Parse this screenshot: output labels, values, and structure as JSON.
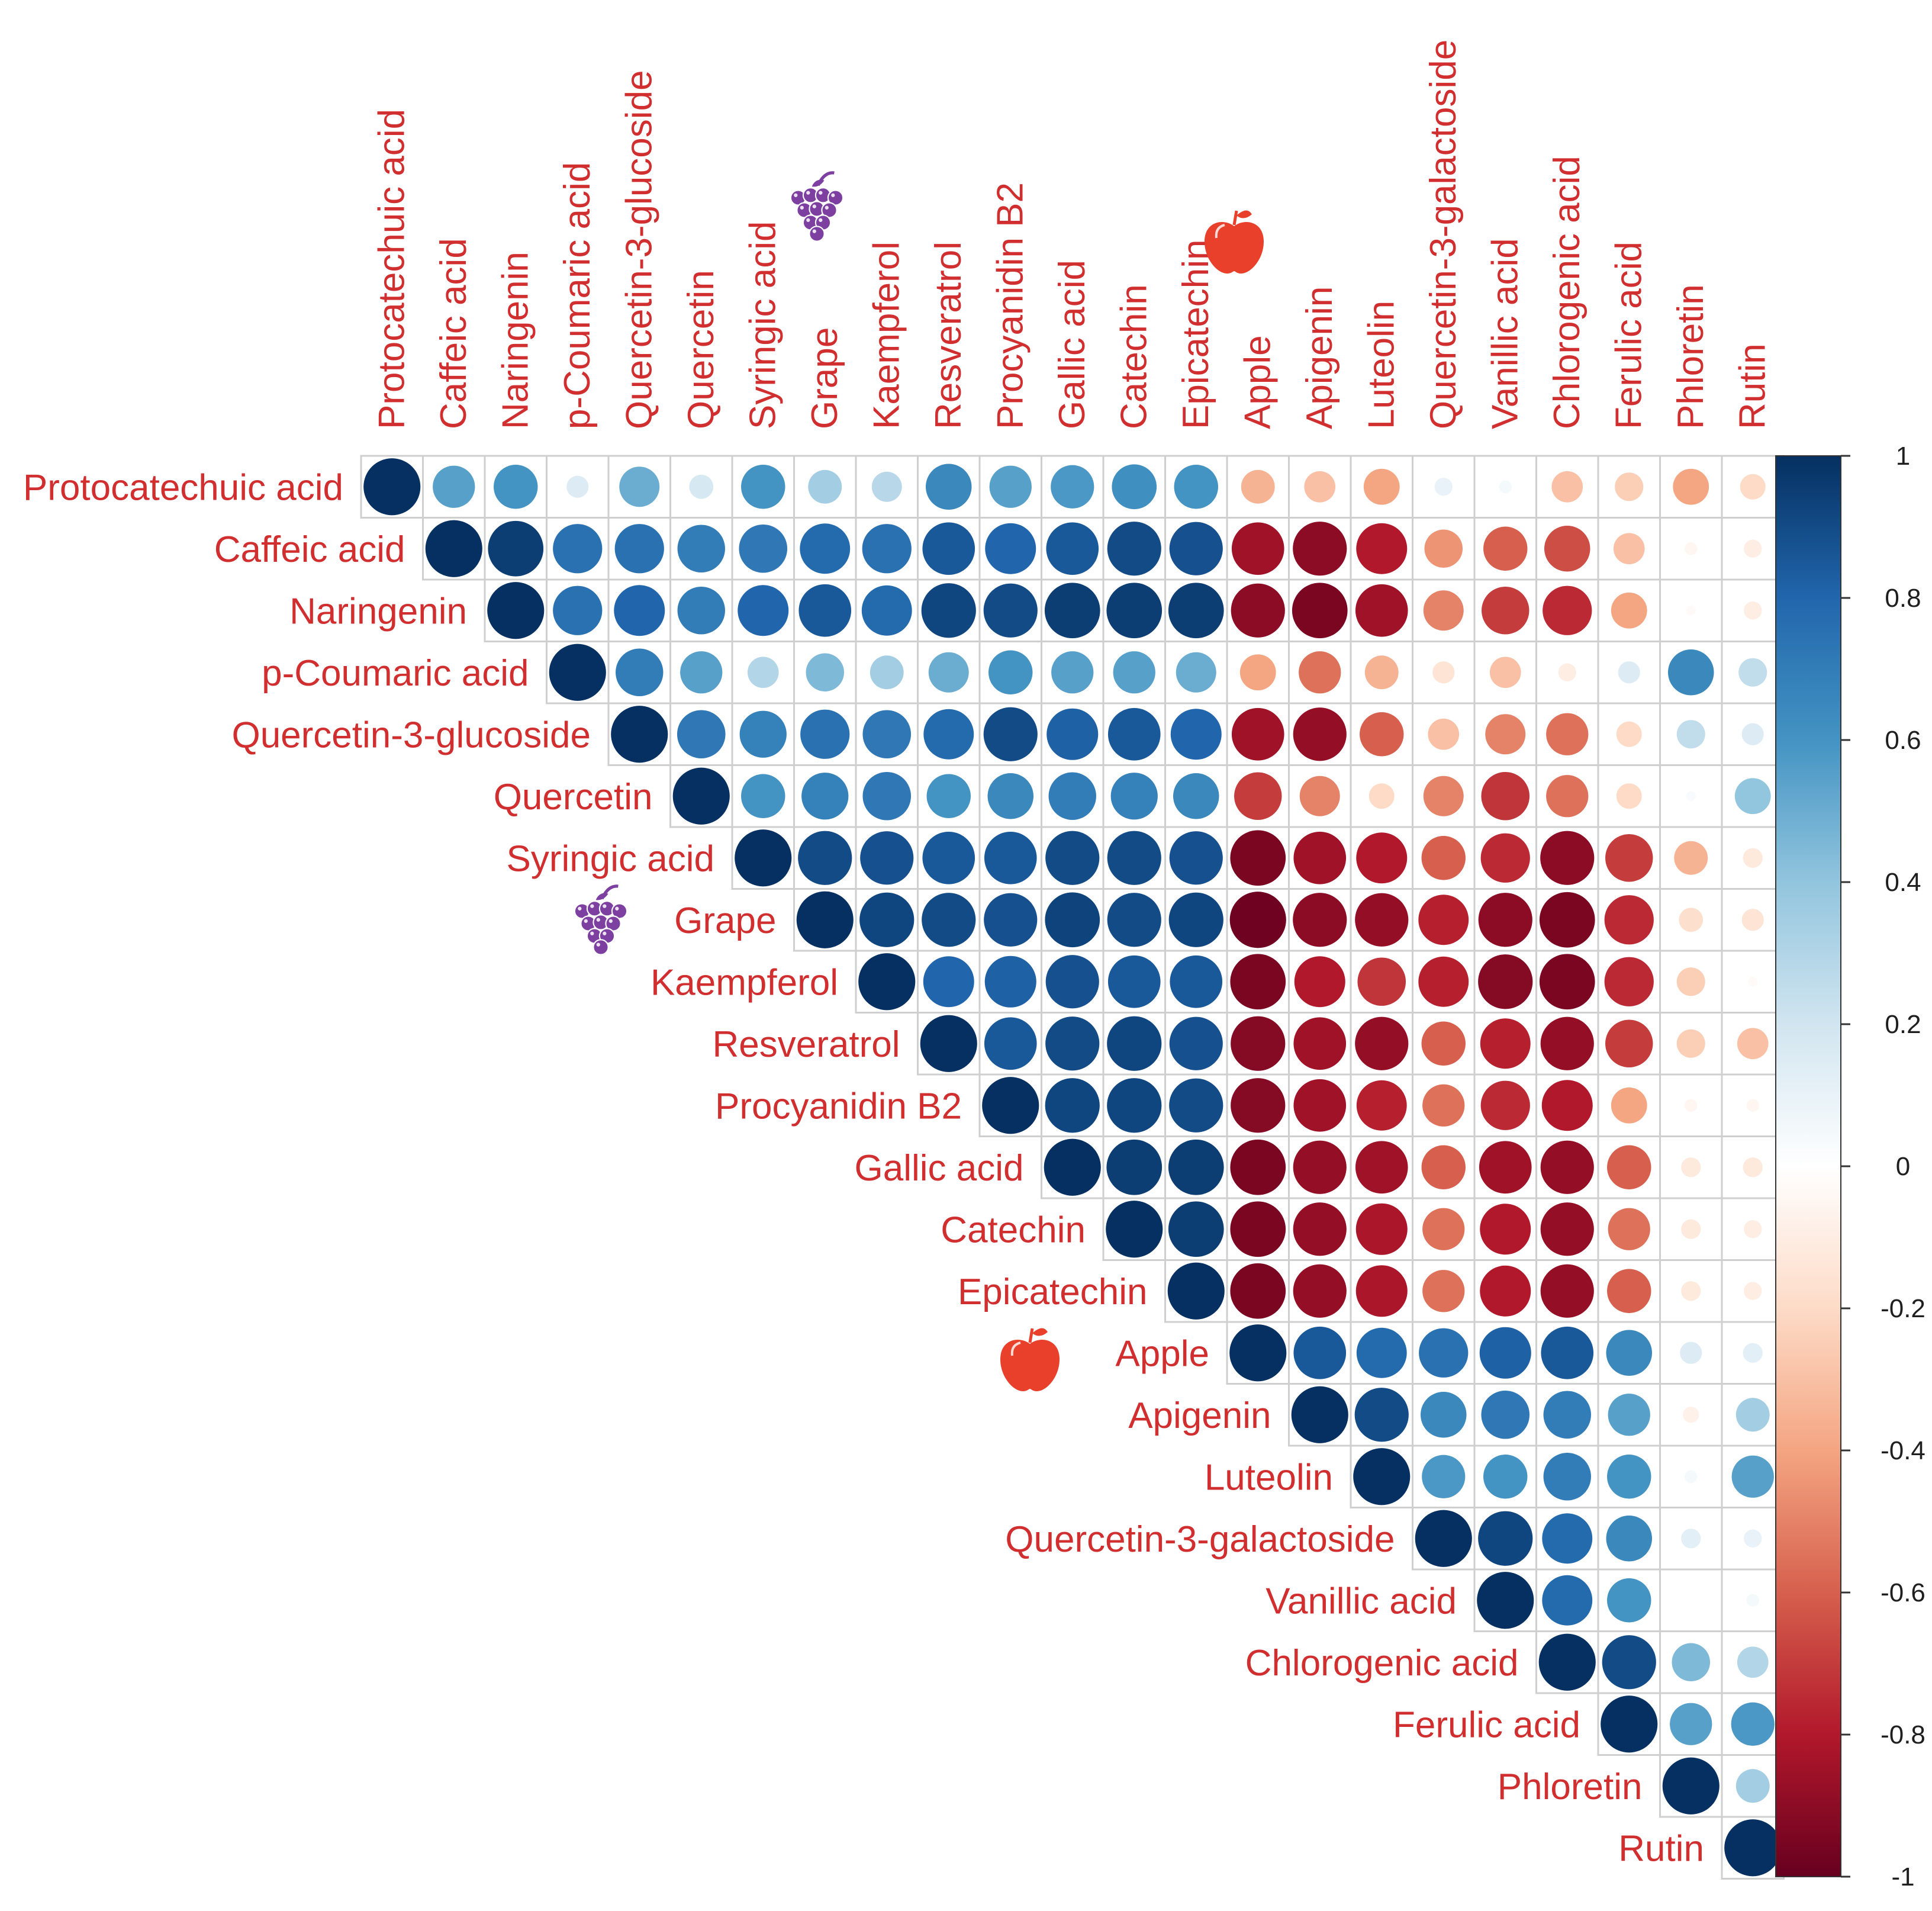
{
  "chart_data": {
    "type": "heatmap",
    "subtype": "correlation-matrix-upper-triangle-circles",
    "title": "",
    "variables": [
      "Protocatechuic acid",
      "Caffeic acid",
      "Naringenin",
      "p-Coumaric acid",
      "Quercetin-3-glucoside",
      "Quercetin",
      "Syringic acid",
      "Grape",
      "Kaempferol",
      "Resveratrol",
      "Procyanidin B2",
      "Gallic acid",
      "Catechin",
      "Epicatechin",
      "Apple",
      "Apigenin",
      "Luteolin",
      "Quercetin-3-galactoside",
      "Vanillic acid",
      "Chlorogenic acid",
      "Ferulic acid",
      "Phloretin",
      "Rutin"
    ],
    "matrix_upper": [
      [
        1,
        0.55,
        0.6,
        0.15,
        0.5,
        0.18,
        0.6,
        0.35,
        0.28,
        0.65,
        0.55,
        0.58,
        0.62,
        0.6,
        -0.35,
        -0.3,
        -0.4,
        0.1,
        0.05,
        -0.3,
        -0.25,
        -0.4,
        -0.2
      ],
      [
        1,
        0.95,
        0.75,
        0.75,
        0.7,
        0.72,
        0.78,
        0.75,
        0.85,
        0.8,
        0.85,
        0.9,
        0.88,
        -0.85,
        -0.9,
        -0.8,
        -0.45,
        -0.6,
        -0.65,
        -0.3,
        -0.05,
        -0.1
      ],
      [
        1,
        0.75,
        0.8,
        0.7,
        0.8,
        0.85,
        0.78,
        0.92,
        0.9,
        0.95,
        0.95,
        0.95,
        -0.9,
        -0.95,
        -0.85,
        -0.5,
        -0.7,
        -0.75,
        -0.4,
        -0.03,
        -0.1
      ],
      [
        1,
        0.7,
        0.55,
        0.3,
        0.45,
        0.35,
        0.5,
        0.6,
        0.55,
        0.55,
        0.5,
        -0.4,
        -0.55,
        -0.35,
        -0.15,
        -0.3,
        -0.1,
        0.15,
        0.65,
        0.25
      ],
      [
        1,
        0.72,
        0.68,
        0.75,
        0.72,
        0.78,
        0.9,
        0.82,
        0.85,
        0.8,
        -0.85,
        -0.88,
        -0.6,
        -0.3,
        -0.5,
        -0.55,
        -0.2,
        0.25,
        0.15
      ],
      [
        1,
        0.6,
        0.68,
        0.72,
        0.6,
        0.65,
        0.7,
        0.68,
        0.65,
        -0.7,
        -0.5,
        -0.2,
        -0.5,
        -0.72,
        -0.55,
        -0.2,
        0.03,
        0.4
      ],
      [
        1,
        0.9,
        0.88,
        0.85,
        0.85,
        0.9,
        0.9,
        0.88,
        -0.95,
        -0.85,
        -0.8,
        -0.6,
        -0.75,
        -0.9,
        -0.7,
        -0.35,
        -0.12
      ],
      [
        1,
        0.92,
        0.9,
        0.88,
        0.93,
        0.9,
        0.92,
        -0.98,
        -0.9,
        -0.88,
        -0.78,
        -0.9,
        -0.95,
        -0.75,
        -0.18,
        -0.15
      ],
      [
        1,
        0.8,
        0.82,
        0.88,
        0.85,
        0.85,
        -0.95,
        -0.8,
        -0.72,
        -0.78,
        -0.92,
        -0.95,
        -0.75,
        -0.25,
        -0.03
      ],
      [
        1,
        0.85,
        0.9,
        0.92,
        0.88,
        -0.92,
        -0.85,
        -0.88,
        -0.6,
        -0.78,
        -0.88,
        -0.7,
        -0.25,
        -0.3
      ],
      [
        1,
        0.92,
        0.92,
        0.9,
        -0.92,
        -0.85,
        -0.78,
        -0.55,
        -0.75,
        -0.8,
        -0.4,
        -0.05,
        -0.05
      ],
      [
        1,
        0.95,
        0.95,
        -0.95,
        -0.88,
        -0.85,
        -0.6,
        -0.85,
        -0.88,
        -0.6,
        -0.12,
        -0.12
      ],
      [
        1,
        0.95,
        -0.95,
        -0.88,
        -0.82,
        -0.55,
        -0.8,
        -0.88,
        -0.55,
        -0.12,
        -0.1
      ],
      [
        1,
        -0.95,
        -0.88,
        -0.82,
        -0.55,
        -0.8,
        -0.88,
        -0.6,
        -0.12,
        -0.1
      ],
      [
        1,
        0.85,
        0.78,
        0.75,
        0.82,
        0.85,
        0.65,
        0.15,
        0.12
      ],
      [
        1,
        0.9,
        0.65,
        0.72,
        0.7,
        0.55,
        -0.08,
        0.35
      ],
      [
        1,
        0.58,
        0.6,
        0.7,
        0.6,
        0.05,
        0.55
      ],
      [
        1,
        0.92,
        0.78,
        0.65,
        0.12,
        0.1
      ],
      [
        1,
        0.78,
        0.6,
        0,
        0.05
      ],
      [
        1,
        0.9,
        0.45,
        0.3
      ],
      [
        1,
        0.55,
        0.58
      ],
      [
        1,
        0.35
      ],
      [
        1
      ]
    ],
    "color_scale": {
      "range": [
        -1,
        1
      ],
      "ticks": [
        "1",
        "0.8",
        "0.6",
        "0.4",
        "0.2",
        "0",
        "-0.2",
        "-0.4",
        "-0.6",
        "-0.8",
        "-1"
      ],
      "colors": {
        "-1": "#67001f",
        "-0.8": "#b2182b",
        "-0.6": "#d6604d",
        "-0.4": "#f4a582",
        "-0.2": "#fddbc7",
        "0": "#ffffff",
        "0.2": "#d1e5f0",
        "0.4": "#92c5de",
        "0.6": "#4393c3",
        "0.8": "#2166ac",
        "1": "#053061"
      }
    },
    "legend": "right",
    "group_markers": [
      {
        "variable": "Grape",
        "icon": "grape-icon",
        "color": "#7d3fa0"
      },
      {
        "variable": "Apple",
        "icon": "apple-icon",
        "color": "#e8402a"
      }
    ],
    "label_color": "#d12f2f"
  }
}
